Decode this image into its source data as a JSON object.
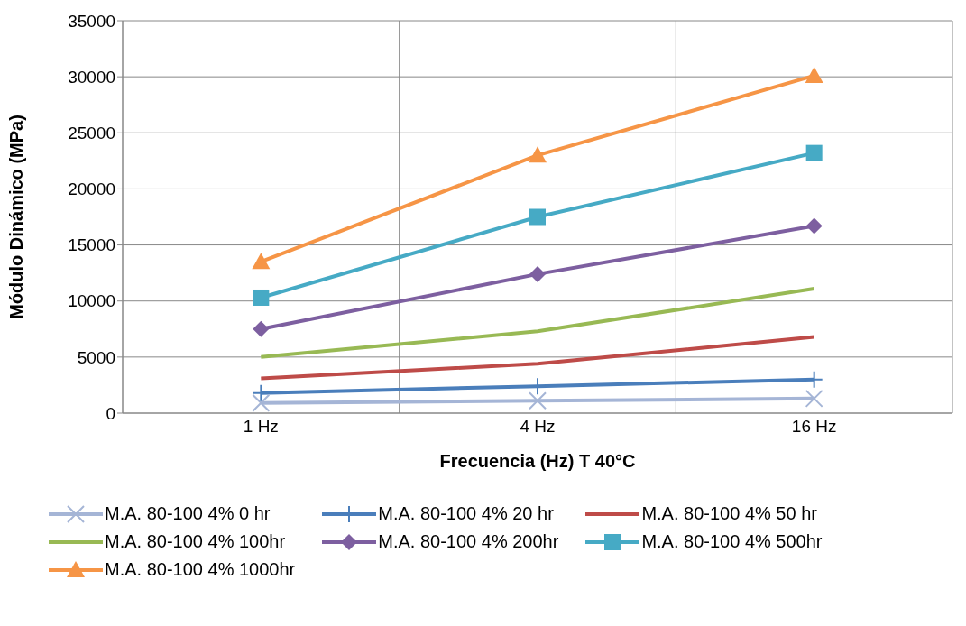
{
  "chart_data": {
    "type": "line",
    "xlabel": "Frecuencia (Hz) T 40°C",
    "ylabel": "Módulo Dinámico (MPa)",
    "categories": [
      "1 Hz",
      "4 Hz",
      "16 Hz"
    ],
    "ylim": [
      0,
      35000
    ],
    "yticks": [
      0,
      5000,
      10000,
      15000,
      20000,
      25000,
      30000,
      35000
    ],
    "grid": true,
    "legend": "bottom",
    "series": [
      {
        "name": "M.A. 80-100 4% 0 hr",
        "color": "#a5b5d6",
        "marker": "cross",
        "values": [
          900,
          1100,
          1300
        ]
      },
      {
        "name": "M.A. 80-100 4% 20 hr",
        "color": "#4a7ebb",
        "marker": "plus",
        "values": [
          1800,
          2400,
          3000
        ]
      },
      {
        "name": "M.A. 80-100 4% 50 hr",
        "color": "#be4b48",
        "marker": "none",
        "values": [
          3100,
          4400,
          6800
        ]
      },
      {
        "name": "M.A. 80-100 4% 100hr",
        "color": "#98b954",
        "marker": "none",
        "values": [
          5000,
          7300,
          11100
        ]
      },
      {
        "name": "M.A. 80-100 4% 200hr",
        "color": "#7d5fa0",
        "marker": "diamond",
        "values": [
          7500,
          12400,
          16700
        ]
      },
      {
        "name": "M.A. 80-100 4% 500hr",
        "color": "#46aac5",
        "marker": "square",
        "values": [
          10300,
          17500,
          23200
        ]
      },
      {
        "name": "M.A. 80-100 4% 1000hr",
        "color": "#f69546",
        "marker": "triangle",
        "values": [
          13500,
          23000,
          30100
        ]
      }
    ]
  }
}
